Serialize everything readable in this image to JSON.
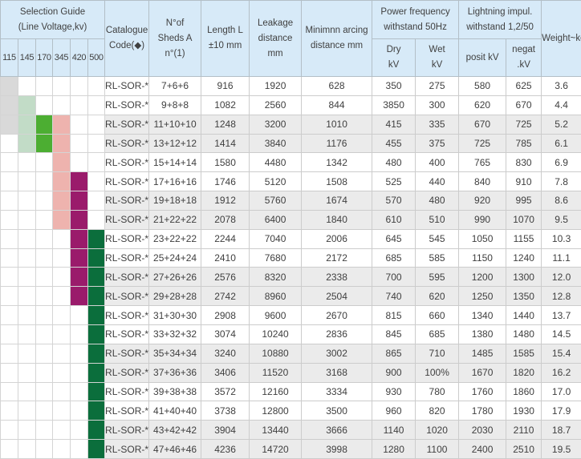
{
  "table": {
    "selection_guide": {
      "title_line1": "Selection Guide",
      "title_line2": "(Line Voltage,kv)",
      "voltages": [
        "115",
        "145",
        "170",
        "345",
        "420",
        "500"
      ]
    },
    "columns": {
      "catalogue": [
        "Catalogue",
        "Code(◆)"
      ],
      "sheds": [
        "N°of",
        "Sheds A",
        "n°(1)"
      ],
      "length": [
        "Length L",
        "±10 mm"
      ],
      "leakage": [
        "Leakage",
        "distance",
        "mm"
      ],
      "arcing": [
        "Minimnn arcing",
        "distance mm"
      ],
      "power_freq": [
        "Power frequency",
        "withstand 50Hz"
      ],
      "dry": [
        "Dry",
        "kV"
      ],
      "wet": [
        "Wet",
        "kV"
      ],
      "lightning": [
        "Lightning impul.",
        "withstand 1,2/50"
      ],
      "posit": [
        "posit kV"
      ],
      "negat": [
        "negat",
        ".kV"
      ],
      "weight": "Weight~kg"
    },
    "mark_colors": {
      "gray": "#d9d9d9",
      "lightgreen": "#c2dcc7",
      "green": "#4cae32",
      "pink": "#eeb3ae",
      "magenta": "#9a1b6b",
      "darkgreen": "#0b6e3c"
    },
    "rows": [
      {
        "code": "RL-SOR-*",
        "sheds": "7+6+6",
        "length": "916",
        "leakage": "1920",
        "arcing": "628",
        "dry": "350",
        "wet": "275",
        "posit": "580",
        "negat": "625",
        "weight": "3.6",
        "marks": [
          "gray",
          null,
          null,
          null,
          null,
          null
        ]
      },
      {
        "code": "RL-SOR-*",
        "sheds": "9+8+8",
        "length": "1082",
        "leakage": "2560",
        "arcing": "844",
        "dry": "3850",
        "wet": "300",
        "posit": "620",
        "negat": "670",
        "weight": "4.4",
        "marks": [
          "gray",
          "lightgreen",
          null,
          null,
          null,
          null
        ]
      },
      {
        "code": "RL-SOR-*",
        "sheds": "11+10+10",
        "length": "1248",
        "leakage": "3200",
        "arcing": "1010",
        "dry": "415",
        "wet": "335",
        "posit": "670",
        "negat": "725",
        "weight": "5.2",
        "marks": [
          "gray",
          "lightgreen",
          "green",
          "pink",
          null,
          null
        ]
      },
      {
        "code": "RL-SOR-*",
        "sheds": "13+12+12",
        "length": "1414",
        "leakage": "3840",
        "arcing": "1176",
        "dry": "455",
        "wet": "375",
        "posit": "725",
        "negat": "785",
        "weight": "6.1",
        "marks": [
          null,
          "lightgreen",
          "green",
          "pink",
          null,
          null
        ]
      },
      {
        "code": "RL-SOR-*",
        "sheds": "15+14+14",
        "length": "1580",
        "leakage": "4480",
        "arcing": "1342",
        "dry": "480",
        "wet": "400",
        "posit": "765",
        "negat": "830",
        "weight": "6.9",
        "marks": [
          null,
          null,
          null,
          "pink",
          null,
          null
        ]
      },
      {
        "code": "RL-SOR-*",
        "sheds": "17+16+16",
        "length": "1746",
        "leakage": "5120",
        "arcing": "1508",
        "dry": "525",
        "wet": "440",
        "posit": "840",
        "negat": "910",
        "weight": "7.8",
        "marks": [
          null,
          null,
          null,
          "pink",
          "magenta",
          null
        ]
      },
      {
        "code": "RL-SOR-*",
        "sheds": "19+18+18",
        "length": "1912",
        "leakage": "5760",
        "arcing": "1674",
        "dry": "570",
        "wet": "480",
        "posit": "920",
        "negat": "995",
        "weight": "8.6",
        "marks": [
          null,
          null,
          null,
          "pink",
          "magenta",
          null
        ]
      },
      {
        "code": "RL-SOR-*",
        "sheds": "21+22+22",
        "length": "2078",
        "leakage": "6400",
        "arcing": "1840",
        "dry": "610",
        "wet": "510",
        "posit": "990",
        "negat": "1070",
        "weight": "9.5",
        "marks": [
          null,
          null,
          null,
          "pink",
          "magenta",
          null
        ]
      },
      {
        "code": "RL-SOR-*",
        "sheds": "23+22+22",
        "length": "2244",
        "leakage": "7040",
        "arcing": "2006",
        "dry": "645",
        "wet": "545",
        "posit": "1050",
        "negat": "1155",
        "weight": "10.3",
        "marks": [
          null,
          null,
          null,
          null,
          "magenta",
          "darkgreen"
        ]
      },
      {
        "code": "RL-SOR-*",
        "sheds": "25+24+24",
        "length": "2410",
        "leakage": "7680",
        "arcing": "2172",
        "dry": "685",
        "wet": "585",
        "posit": "1150",
        "negat": "1240",
        "weight": "11.1",
        "marks": [
          null,
          null,
          null,
          null,
          "magenta",
          "darkgreen"
        ]
      },
      {
        "code": "RL-SOR-*",
        "sheds": "27+26+26",
        "length": "2576",
        "leakage": "8320",
        "arcing": "2338",
        "dry": "700",
        "wet": "595",
        "posit": "1200",
        "negat": "1300",
        "weight": "12.0",
        "marks": [
          null,
          null,
          null,
          null,
          "magenta",
          "darkgreen"
        ]
      },
      {
        "code": "RL-SOR-*",
        "sheds": "29+28+28",
        "length": "2742",
        "leakage": "8960",
        "arcing": "2504",
        "dry": "740",
        "wet": "620",
        "posit": "1250",
        "negat": "1350",
        "weight": "12.8",
        "marks": [
          null,
          null,
          null,
          null,
          "magenta",
          "darkgreen"
        ]
      },
      {
        "code": "RL-SOR-*",
        "sheds": "31+30+30",
        "length": "2908",
        "leakage": "9600",
        "arcing": "2670",
        "dry": "815",
        "wet": "660",
        "posit": "1340",
        "negat": "1440",
        "weight": "13.7",
        "marks": [
          null,
          null,
          null,
          null,
          null,
          "darkgreen"
        ]
      },
      {
        "code": "RL-SOR-*",
        "sheds": "33+32+32",
        "length": "3074",
        "leakage": "10240",
        "arcing": "2836",
        "dry": "845",
        "wet": "685",
        "posit": "1380",
        "negat": "1480",
        "weight": "14.5",
        "marks": [
          null,
          null,
          null,
          null,
          null,
          "darkgreen"
        ]
      },
      {
        "code": "RL-SOR-*",
        "sheds": "35+34+34",
        "length": "3240",
        "leakage": "10880",
        "arcing": "3002",
        "dry": "865",
        "wet": "710",
        "posit": "1485",
        "negat": "1585",
        "weight": "15.4",
        "marks": [
          null,
          null,
          null,
          null,
          null,
          "darkgreen"
        ]
      },
      {
        "code": "RL-SOR-*",
        "sheds": "37+36+36",
        "length": "3406",
        "leakage": "11520",
        "arcing": "3168",
        "dry": "900",
        "wet": "100%",
        "posit": "1670",
        "negat": "1820",
        "weight": "16.2",
        "marks": [
          null,
          null,
          null,
          null,
          null,
          "darkgreen"
        ]
      },
      {
        "code": "RL-SOR-*",
        "sheds": "39+38+38",
        "length": "3572",
        "leakage": "12160",
        "arcing": "3334",
        "dry": "930",
        "wet": "780",
        "posit": "1760",
        "negat": "1860",
        "weight": "17.0",
        "marks": [
          null,
          null,
          null,
          null,
          null,
          "darkgreen"
        ]
      },
      {
        "code": "RL-SOR-*",
        "sheds": "41+40+40",
        "length": "3738",
        "leakage": "12800",
        "arcing": "3500",
        "dry": "960",
        "wet": "820",
        "posit": "1780",
        "negat": "1930",
        "weight": "17.9",
        "marks": [
          null,
          null,
          null,
          null,
          null,
          "darkgreen"
        ]
      },
      {
        "code": "RL-SOR-*",
        "sheds": "43+42+42",
        "length": "3904",
        "leakage": "13440",
        "arcing": "3666",
        "dry": "1140",
        "wet": "1020",
        "posit": "2030",
        "negat": "2110",
        "weight": "18.7",
        "marks": [
          null,
          null,
          null,
          null,
          null,
          "darkgreen"
        ]
      },
      {
        "code": "RL-SOR-*",
        "sheds": "47+46+46",
        "length": "4236",
        "leakage": "14720",
        "arcing": "3998",
        "dry": "1280",
        "wet": "1100",
        "posit": "2400",
        "negat": "2510",
        "weight": "19.5",
        "marks": [
          null,
          null,
          null,
          null,
          null,
          "darkgreen"
        ]
      }
    ]
  }
}
